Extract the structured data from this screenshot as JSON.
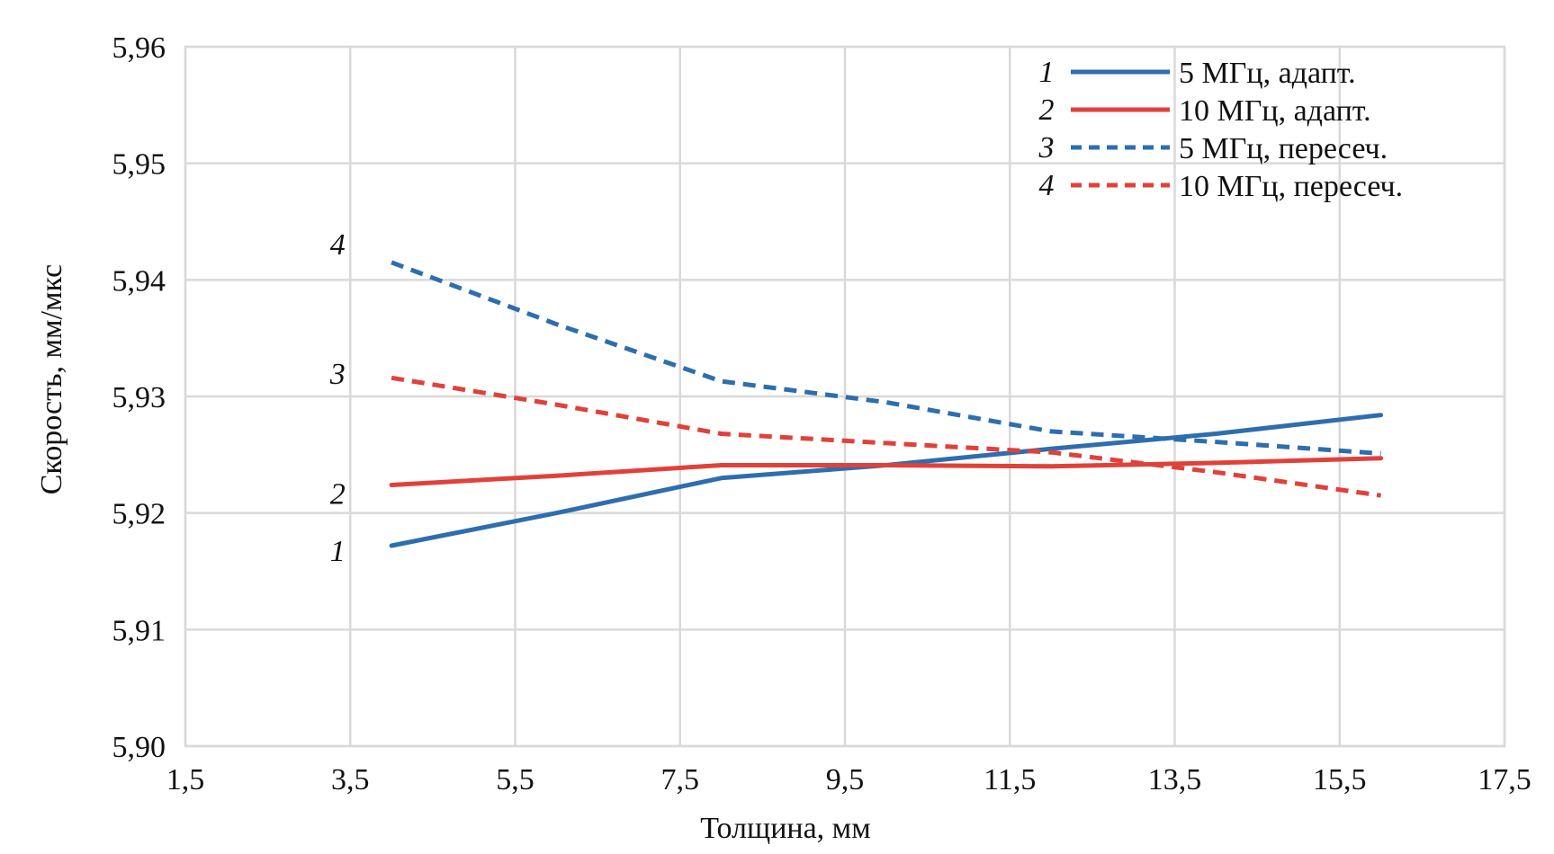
{
  "chart_data": {
    "type": "line",
    "xlabel": "Толщина, мм",
    "ylabel": "Скорость, мм/мкс",
    "xlim": [
      1.5,
      17.5
    ],
    "ylim": [
      5.9,
      5.96
    ],
    "x_ticks": [
      "1,5",
      "3,5",
      "5,5",
      "7,5",
      "9,5",
      "11,5",
      "13,5",
      "15,5",
      "17,5"
    ],
    "y_ticks": [
      "5,90",
      "5,91",
      "5,92",
      "5,93",
      "5,94",
      "5,95",
      "5,96"
    ],
    "grid": true,
    "legend_position": "top-right",
    "series": [
      {
        "number": "1",
        "name": "5 МГц, адапт.",
        "color": "#2e6ead",
        "dash": "solid",
        "x": [
          4,
          6,
          8,
          10,
          12,
          14,
          16
        ],
        "y": [
          5.9172,
          5.92,
          5.923,
          5.9241,
          5.9255,
          5.9268,
          5.9284
        ]
      },
      {
        "number": "2",
        "name": "10 МГц, адапт.",
        "color": "#e0413a",
        "dash": "solid",
        "x": [
          4,
          6,
          8,
          10,
          12,
          14,
          16
        ],
        "y": [
          5.9224,
          5.9232,
          5.9241,
          5.9241,
          5.924,
          5.9243,
          5.9247
        ]
      },
      {
        "number": "3",
        "name": "5 МГц, пересеч.",
        "color": "#2e6ead",
        "dash": "dashed",
        "x": [
          4,
          6,
          8,
          10,
          12,
          14,
          16
        ],
        "y": [
          5.9415,
          5.9362,
          5.9313,
          5.9295,
          5.927,
          5.9261,
          5.9251
        ]
      },
      {
        "number": "4",
        "name": "10 МГц, пересеч.",
        "color": "#e0413a",
        "dash": "dashed",
        "x": [
          4,
          6,
          8,
          10,
          12,
          14,
          16
        ],
        "y": [
          5.9316,
          5.9293,
          5.9268,
          5.926,
          5.9252,
          5.9235,
          5.9215
        ]
      }
    ],
    "curve_labels": [
      {
        "text": "4",
        "x": 3.5,
        "y": 5.9431
      },
      {
        "text": "3",
        "x": 3.5,
        "y": 5.932
      },
      {
        "text": "2",
        "x": 3.5,
        "y": 5.9217
      },
      {
        "text": "1",
        "x": 3.5,
        "y": 5.9168
      }
    ]
  }
}
